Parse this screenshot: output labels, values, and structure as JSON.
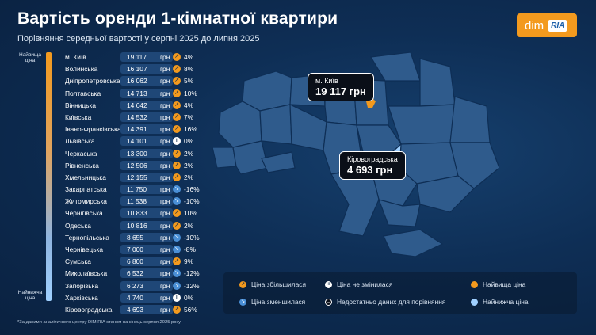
{
  "header": {
    "title": "Вартість оренди 1-кімнатної квартири",
    "subtitle": "Порівняння середньої вартості у серпні 2025 до липня 2025"
  },
  "logo": {
    "left_text": "dim",
    "right_text": "RIA"
  },
  "scale": {
    "top_label": "Найвища ціна",
    "bottom_label": "Найнижча ціна"
  },
  "currency": "грн",
  "colors": {
    "up": "#f39a1e",
    "down": "#4a8fd6",
    "same": "#ffffff",
    "highest": "#f39a1e",
    "lowest": "#9fd0ff",
    "region": "#2f5b8c"
  },
  "chart_data": {
    "type": "table",
    "columns": [
      "region",
      "price_uah",
      "trend",
      "change"
    ],
    "rows": [
      {
        "name": "м. Київ",
        "value": "19 117",
        "trend": "up",
        "change": "4%"
      },
      {
        "name": "Волинська",
        "value": "16 107",
        "trend": "up",
        "change": "8%"
      },
      {
        "name": "Дніпропетровська",
        "value": "16 062",
        "trend": "up",
        "change": "5%"
      },
      {
        "name": "Полтавська",
        "value": "14 713",
        "trend": "up",
        "change": "10%"
      },
      {
        "name": "Вінницька",
        "value": "14 642",
        "trend": "up",
        "change": "4%"
      },
      {
        "name": "Київська",
        "value": "14 532",
        "trend": "up",
        "change": "7%"
      },
      {
        "name": "Івано-Франківська",
        "value": "14 391",
        "trend": "up",
        "change": "16%"
      },
      {
        "name": "Львівська",
        "value": "14 101",
        "trend": "same",
        "change": "0%"
      },
      {
        "name": "Черкаська",
        "value": "13 300",
        "trend": "up",
        "change": "2%"
      },
      {
        "name": "Рівненська",
        "value": "12 506",
        "trend": "up",
        "change": "2%"
      },
      {
        "name": "Хмельницька",
        "value": "12 155",
        "trend": "up",
        "change": "2%"
      },
      {
        "name": "Закарпатська",
        "value": "11 750",
        "trend": "down",
        "change": "-16%"
      },
      {
        "name": "Житомирська",
        "value": "11 538",
        "trend": "down",
        "change": "-10%"
      },
      {
        "name": "Чернігівська",
        "value": "10 833",
        "trend": "up",
        "change": "10%"
      },
      {
        "name": "Одеська",
        "value": "10 816",
        "trend": "up",
        "change": "2%"
      },
      {
        "name": "Тернопільська",
        "value": "8 655",
        "trend": "down",
        "change": "-10%"
      },
      {
        "name": "Чернівецька",
        "value": "7 000",
        "trend": "down",
        "change": "-8%"
      },
      {
        "name": "Сумська",
        "value": "6 800",
        "trend": "up",
        "change": "9%"
      },
      {
        "name": "Миколаївська",
        "value": "6 532",
        "trend": "down",
        "change": "-12%"
      },
      {
        "name": "Запорізька",
        "value": "6 273",
        "trend": "down",
        "change": "-12%"
      },
      {
        "name": "Харківська",
        "value": "4 740",
        "trend": "same",
        "change": "0%"
      },
      {
        "name": "Кіровоградська",
        "value": "4 693",
        "trend": "up",
        "change": "56%"
      }
    ]
  },
  "callouts": {
    "kyiv": {
      "name": "м. Київ",
      "value": "19 117 грн"
    },
    "kirovohrad": {
      "name": "Кіровоградська",
      "value": "4 693 грн"
    }
  },
  "legend": {
    "up": "Ціна збільшилася",
    "same": "Ціна не змінилася",
    "highest": "Найвища ціна",
    "down": "Ціна зменшилася",
    "na": "Недостатньо даних для порівняння",
    "lowest": "Найнижча ціна"
  },
  "footnote": "*За даними аналітичного центру DIM.RIA станом на кінець серпня 2025 року"
}
